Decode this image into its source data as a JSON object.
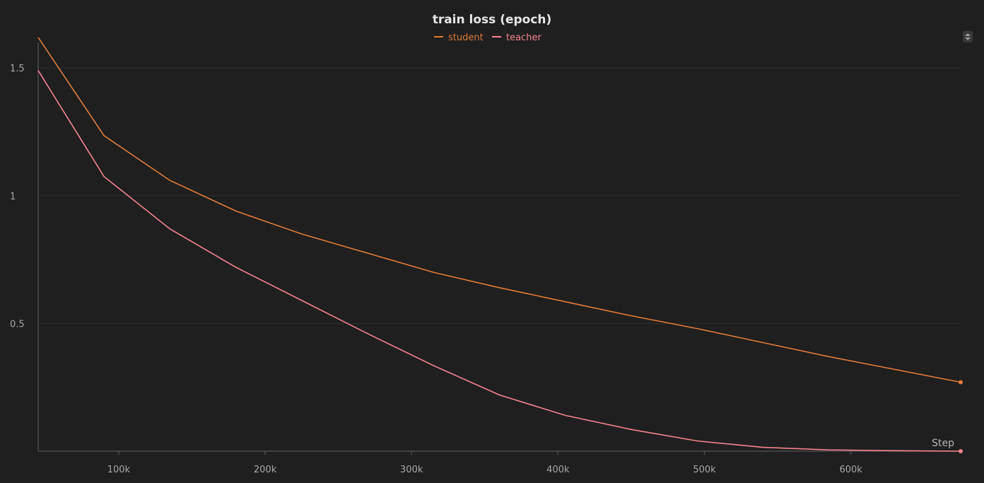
{
  "chart_data": {
    "type": "line",
    "title": "train loss (epoch)",
    "xlabel": "Step",
    "ylabel": "",
    "xlim": [
      45000,
      675000
    ],
    "ylim": [
      0,
      1.6
    ],
    "x_ticks": [
      100000,
      200000,
      300000,
      400000,
      500000,
      600000
    ],
    "x_tick_labels": [
      "100k",
      "200k",
      "300k",
      "400k",
      "500k",
      "600k"
    ],
    "y_ticks": [
      0.5,
      1,
      1.5
    ],
    "y_tick_labels": [
      "0.5",
      "1",
      "1.5"
    ],
    "grid": true,
    "legend_position": "top-center",
    "series": [
      {
        "name": "student",
        "color": "#e07b39",
        "x": [
          45000,
          90000,
          135000,
          180000,
          225000,
          270000,
          315000,
          360000,
          405000,
          450000,
          495000,
          540000,
          585000,
          630000,
          675000
        ],
        "y": [
          1.62,
          1.235,
          1.06,
          0.94,
          0.85,
          0.775,
          0.7,
          0.64,
          0.585,
          0.53,
          0.48,
          0.425,
          0.37,
          0.32,
          0.27
        ]
      },
      {
        "name": "teacher",
        "color": "#f2838f",
        "x": [
          45000,
          90000,
          135000,
          180000,
          225000,
          270000,
          315000,
          360000,
          405000,
          450000,
          495000,
          540000,
          585000,
          630000,
          675000
        ],
        "y": [
          1.49,
          1.075,
          0.87,
          0.72,
          0.59,
          0.46,
          0.335,
          0.22,
          0.14,
          0.085,
          0.04,
          0.015,
          0.005,
          0.002,
          0.0
        ]
      }
    ]
  },
  "controls": {
    "sort_icon": "sort-updown-icon"
  }
}
